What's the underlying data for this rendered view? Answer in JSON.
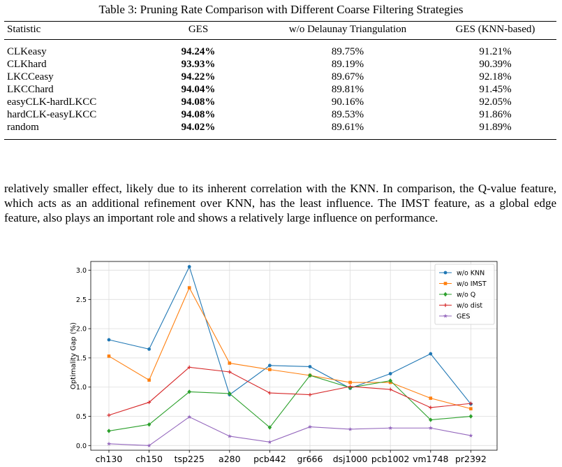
{
  "table": {
    "caption": "Table 3: Pruning Rate Comparison with Different Coarse Filtering Strategies",
    "headers": [
      "Statistic",
      "GES",
      "w/o Delaunay Triangulation",
      "GES (KNN-based)"
    ],
    "rows": [
      [
        "CLKeasy",
        "94.24%",
        "89.75%",
        "91.21%"
      ],
      [
        "CLKhard",
        "93.93%",
        "89.19%",
        "90.39%"
      ],
      [
        "LKCCeasy",
        "94.22%",
        "89.67%",
        "92.18%"
      ],
      [
        "LKCChard",
        "94.04%",
        "89.81%",
        "91.45%"
      ],
      [
        "easyCLK-hardLKCC",
        "94.08%",
        "90.16%",
        "92.05%"
      ],
      [
        "hardCLK-easyLKCC",
        "94.08%",
        "89.53%",
        "91.86%"
      ],
      [
        "random",
        "94.02%",
        "89.61%",
        "91.89%"
      ]
    ]
  },
  "paragraph": "relatively smaller effect, likely due to its inherent correlation with the KNN. In comparison, the Q-value feature, which acts as an additional refinement over KNN, has the least influence. The IMST feature, as a global edge feature, also plays an important role and shows a relatively large influence on performance.",
  "chart_data": {
    "type": "line",
    "ylabel": "Optimality Gap (%)",
    "xlabel": "",
    "categories": [
      "ch130",
      "ch150",
      "tsp225",
      "a280",
      "pcb442",
      "gr666",
      "dsj1000",
      "pcb1002",
      "vm1748",
      "pr2392"
    ],
    "ylim": [
      -0.08,
      3.15
    ],
    "yticks": [
      "0.0",
      "0.5",
      "1.0",
      "1.5",
      "2.0",
      "2.5",
      "3.0"
    ],
    "grid": true,
    "legend_position": "top-right",
    "series": [
      {
        "name": "w/o KNN",
        "color": "#1f77b4",
        "marker": "circle",
        "values": [
          1.81,
          1.65,
          3.06,
          0.87,
          1.37,
          1.35,
          0.98,
          1.23,
          1.57,
          0.71
        ]
      },
      {
        "name": "w/o IMST",
        "color": "#ff7f0e",
        "marker": "square",
        "values": [
          1.53,
          1.12,
          2.7,
          1.41,
          1.3,
          1.2,
          1.08,
          1.08,
          0.81,
          0.63
        ]
      },
      {
        "name": "w/o Q",
        "color": "#2ca02c",
        "marker": "diamond",
        "values": [
          0.25,
          0.36,
          0.92,
          0.89,
          0.31,
          1.2,
          0.99,
          1.11,
          0.44,
          0.5
        ]
      },
      {
        "name": "w/o dist",
        "color": "#d62728",
        "marker": "plus",
        "values": [
          0.52,
          0.74,
          1.34,
          1.26,
          0.9,
          0.87,
          1.01,
          0.96,
          0.65,
          0.72
        ]
      },
      {
        "name": "GES",
        "color": "#9467bd",
        "marker": "star",
        "values": [
          0.03,
          0.0,
          0.49,
          0.16,
          0.06,
          0.32,
          0.28,
          0.3,
          0.3,
          0.17
        ]
      }
    ]
  }
}
